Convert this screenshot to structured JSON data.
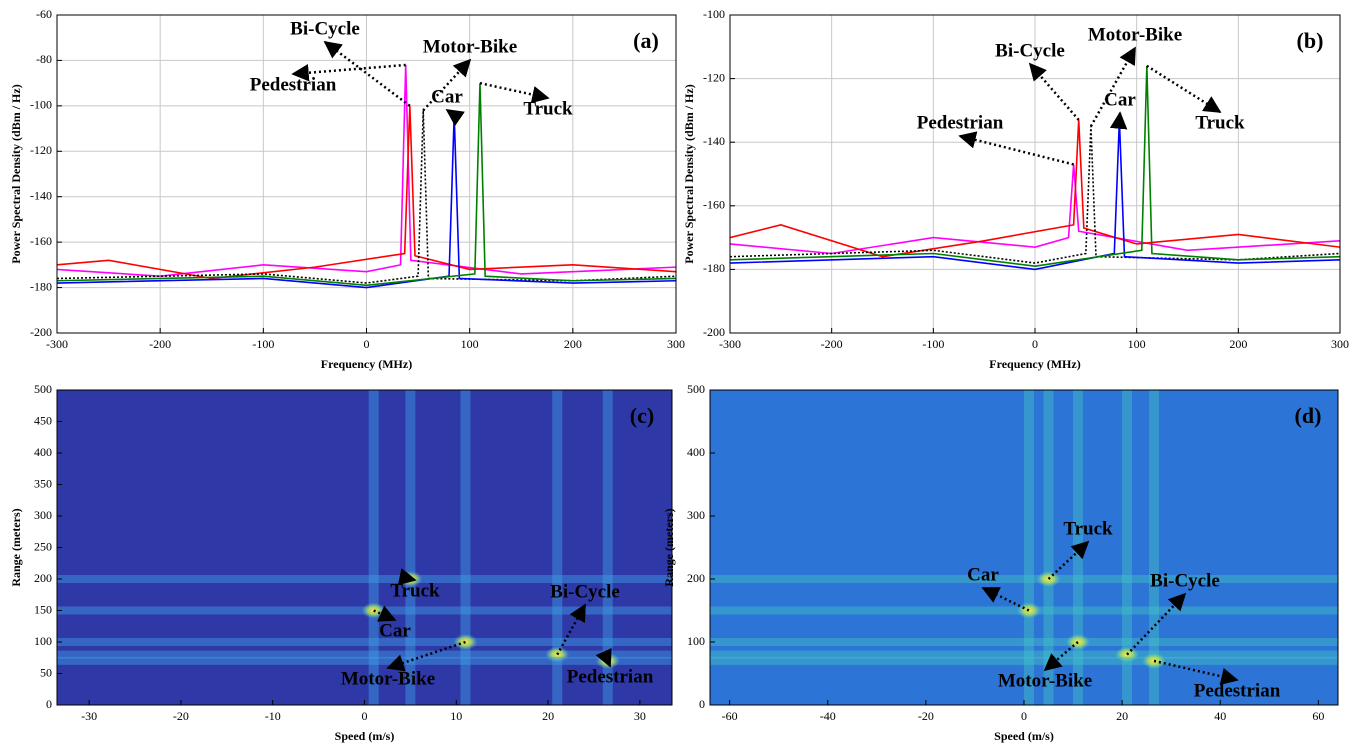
{
  "chart_data": [
    {
      "type": "line",
      "label": "(a)",
      "xlabel": "Frequency (MHz)",
      "ylabel": "Power Spectral Density (dBm / Hz)",
      "xlim": [
        -300,
        300
      ],
      "ylim": [
        -200,
        -60
      ],
      "xticks": [
        -300,
        -200,
        -100,
        0,
        100,
        200,
        300
      ],
      "yticks": [
        -200,
        -180,
        -160,
        -140,
        -120,
        -100,
        -80,
        -60
      ],
      "grid": true,
      "series": [
        {
          "name": "Pedestrian",
          "color": "#ff00ff",
          "style": "solid",
          "x": [
            -300,
            -200,
            -100,
            0,
            33,
            38,
            43,
            150,
            300
          ],
          "values": [
            -172,
            -175,
            -170,
            -173,
            -170,
            -82,
            -168,
            -174,
            -171
          ]
        },
        {
          "name": "Bi-Cycle",
          "color": "#ff0000",
          "style": "solid",
          "x": [
            -300,
            -250,
            -150,
            -50,
            37,
            42,
            47,
            100,
            200,
            300
          ],
          "values": [
            -170,
            -168,
            -176,
            -171,
            -165,
            -100,
            -166,
            -172,
            -170,
            -173
          ]
        },
        {
          "name": "Motor-Bike",
          "color": "#000000",
          "style": "dotted",
          "x": [
            -300,
            -100,
            0,
            50,
            55,
            60,
            200,
            300
          ],
          "values": [
            -176,
            -174,
            -178,
            -175,
            -102,
            -176,
            -177,
            -175
          ]
        },
        {
          "name": "Car",
          "color": "#0000ff",
          "style": "solid",
          "x": [
            -300,
            -100,
            0,
            80,
            85,
            90,
            200,
            300
          ],
          "values": [
            -178,
            -176,
            -180,
            -175,
            -104,
            -176,
            -178,
            -177
          ]
        },
        {
          "name": "Truck",
          "color": "#008000",
          "style": "solid",
          "x": [
            -300,
            -100,
            0,
            105,
            110,
            115,
            200,
            300
          ],
          "values": [
            -177,
            -175,
            -179,
            -174,
            -90,
            -175,
            -177,
            -176
          ]
        }
      ]
    },
    {
      "type": "line",
      "label": "(b)",
      "xlabel": "Frequency (MHz)",
      "ylabel": "Power Spectral Density (dBm / Hz)",
      "xlim": [
        -300,
        300
      ],
      "ylim": [
        -200,
        -100
      ],
      "xticks": [
        -300,
        -200,
        -100,
        0,
        100,
        200,
        300
      ],
      "yticks": [
        -200,
        -180,
        -160,
        -140,
        -120,
        -100
      ],
      "grid": true,
      "series": [
        {
          "name": "Pedestrian",
          "color": "#ff00ff",
          "style": "solid",
          "x": [
            -300,
            -200,
            -100,
            0,
            33,
            38,
            43,
            150,
            300
          ],
          "values": [
            -172,
            -175,
            -170,
            -173,
            -170,
            -147,
            -168,
            -174,
            -171
          ]
        },
        {
          "name": "Bi-Cycle",
          "color": "#ff0000",
          "style": "solid",
          "x": [
            -300,
            -250,
            -150,
            -50,
            38,
            43,
            48,
            100,
            200,
            300
          ],
          "values": [
            -170,
            -166,
            -176,
            -171,
            -166,
            -133,
            -167,
            -172,
            -169,
            -173
          ]
        },
        {
          "name": "Motor-Bike",
          "color": "#000000",
          "style": "dotted",
          "x": [
            -300,
            -100,
            0,
            50,
            55,
            60,
            200,
            300
          ],
          "values": [
            -176,
            -174,
            -178,
            -175,
            -135,
            -176,
            -177,
            -175
          ]
        },
        {
          "name": "Car",
          "color": "#0000ff",
          "style": "solid",
          "x": [
            -300,
            -100,
            0,
            78,
            83,
            88,
            200,
            300
          ],
          "values": [
            -178,
            -176,
            -180,
            -175,
            -133,
            -176,
            -178,
            -177
          ]
        },
        {
          "name": "Truck",
          "color": "#008000",
          "style": "solid",
          "x": [
            -300,
            -100,
            0,
            105,
            110,
            115,
            200,
            300
          ],
          "values": [
            -177,
            -175,
            -179,
            -174,
            -116,
            -175,
            -177,
            -176
          ]
        }
      ]
    },
    {
      "type": "heatmap",
      "label": "(c)",
      "xlabel": "Speed (m/s)",
      "ylabel": "Range (meters)",
      "background": "#2e38a6",
      "stripe_color": "#3f9fe6",
      "xlim": [
        -33.5,
        33.5
      ],
      "ylim": [
        0,
        500
      ],
      "xticks": [
        -30,
        -20,
        -10,
        0,
        10,
        20,
        30
      ],
      "yticks": [
        0,
        50,
        100,
        150,
        200,
        250,
        300,
        350,
        400,
        450,
        500
      ],
      "points": [
        {
          "name": "Car",
          "x": 1,
          "y": 150
        },
        {
          "name": "Truck",
          "x": 5,
          "y": 200
        },
        {
          "name": "Motor-Bike",
          "x": 11,
          "y": 100
        },
        {
          "name": "Bi-Cycle",
          "x": 21,
          "y": 80
        },
        {
          "name": "Pedestrian",
          "x": 26.5,
          "y": 70
        }
      ]
    },
    {
      "type": "heatmap",
      "label": "(d)",
      "xlabel": "Speed (m/s)",
      "ylabel": "Range (meters)",
      "background": "#2c74d6",
      "stripe_color": "#43c4c8",
      "xlim": [
        -64,
        64
      ],
      "ylim": [
        0,
        500
      ],
      "xticks": [
        -60,
        -40,
        -20,
        0,
        20,
        40,
        60
      ],
      "yticks": [
        0,
        100,
        200,
        300,
        400,
        500
      ],
      "points": [
        {
          "name": "Car",
          "x": 1,
          "y": 150
        },
        {
          "name": "Truck",
          "x": 5,
          "y": 200
        },
        {
          "name": "Motor-Bike",
          "x": 11,
          "y": 100
        },
        {
          "name": "Bi-Cycle",
          "x": 21,
          "y": 80
        },
        {
          "name": "Pedestrian",
          "x": 26.5,
          "y": 70
        }
      ]
    }
  ]
}
